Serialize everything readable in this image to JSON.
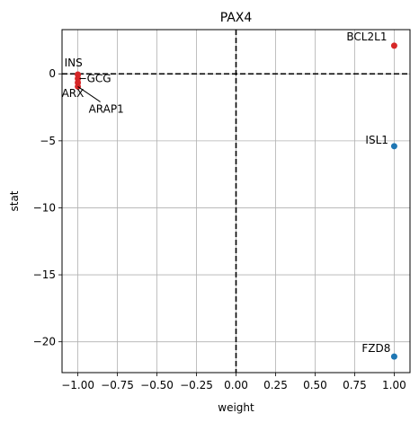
{
  "chart_data": {
    "type": "scatter",
    "title": "PAX4",
    "xlabel": "weight",
    "ylabel": "stat",
    "xlim": [
      -1.1,
      1.1
    ],
    "ylim": [
      -22.3,
      3.3
    ],
    "xticks": [
      -1.0,
      -0.75,
      -0.5,
      -0.25,
      0.0,
      0.25,
      0.5,
      0.75,
      1.0
    ],
    "xtick_labels": [
      "−1.00",
      "−0.75",
      "−0.50",
      "−0.25",
      "0.00",
      "0.25",
      "0.50",
      "0.75",
      "1.00"
    ],
    "yticks": [
      0,
      -5,
      -10,
      -15,
      -20
    ],
    "ytick_labels": [
      "0",
      "−5",
      "−10",
      "−15",
      "−20"
    ],
    "grid": true,
    "reference_lines": {
      "x": 0,
      "y": 0,
      "style": "dashed",
      "color": "#000000"
    },
    "points": [
      {
        "label": "BCL2L1",
        "x": 1.0,
        "y": 2.1,
        "color": "#d62728"
      },
      {
        "label": "ISL1",
        "x": 1.0,
        "y": -5.4,
        "color": "#1f77b4"
      },
      {
        "label": "FZD8",
        "x": 1.0,
        "y": -21.1,
        "color": "#1f77b4"
      },
      {
        "label": "INS",
        "x": -1.0,
        "y": -0.05,
        "color": "#d62728"
      },
      {
        "label": "GCG",
        "x": -1.0,
        "y": -0.35,
        "color": "#d62728"
      },
      {
        "label": "ARX",
        "x": -1.0,
        "y": -0.65,
        "color": "#d62728"
      },
      {
        "label": "ARAP1",
        "x": -1.0,
        "y": -0.95,
        "color": "#d62728"
      }
    ]
  }
}
